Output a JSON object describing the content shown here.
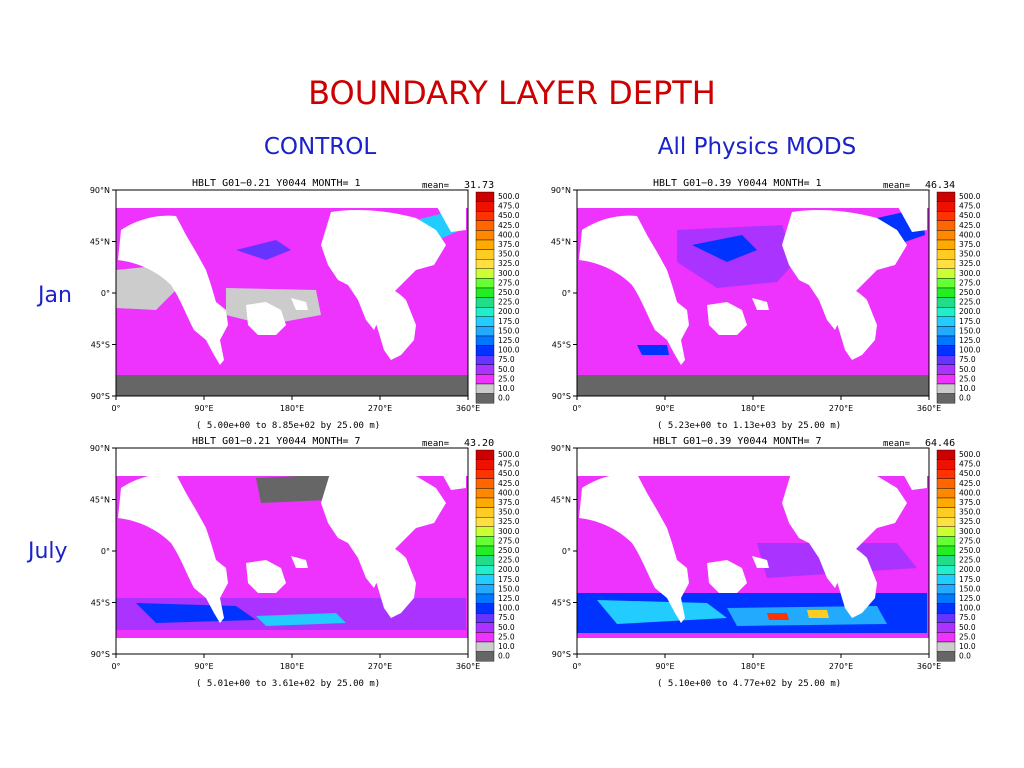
{
  "slide": {
    "title": "BOUNDARY LAYER DEPTH",
    "columns": [
      "CONTROL",
      "All Physics MODS"
    ],
    "rows": [
      "Jan",
      "July"
    ]
  },
  "colorbar": {
    "labels": [
      "500.0",
      "475.0",
      "450.0",
      "425.0",
      "400.0",
      "375.0",
      "350.0",
      "325.0",
      "300.0",
      "275.0",
      "250.0",
      "225.0",
      "200.0",
      "175.0",
      "150.0",
      "125.0",
      "100.0",
      "75.0",
      "50.0",
      "25.0",
      "10.0",
      "0.0"
    ],
    "colors": [
      "#cc0000",
      "#ee1100",
      "#ff3300",
      "#ff6600",
      "#ff8800",
      "#ffaa00",
      "#ffcc22",
      "#ffe040",
      "#ccff33",
      "#66ff33",
      "#22ee22",
      "#22dd88",
      "#22eecc",
      "#22ccff",
      "#22aaff",
      "#0077ff",
      "#0033ff",
      "#6633ff",
      "#aa33ff",
      "#ee33ff",
      "#cccccc",
      "#666666"
    ]
  },
  "axes": {
    "lat_labels": [
      "90°N",
      "45°N",
      "0°",
      "45°S",
      "90°S"
    ],
    "lon_labels": [
      "0°",
      "90°E",
      "180°E",
      "270°E",
      "360°E"
    ]
  },
  "panels": [
    {
      "title": "HBLT G01−0.21 Y0044 MONTH= 1",
      "mean_label": "mean=",
      "mean_value": "31.73",
      "range": "( 5.00e+00 to  8.85e+02 by  25.00 m)"
    },
    {
      "title": "HBLT G01−0.39 Y0044 MONTH= 1",
      "mean_label": "mean=",
      "mean_value": "46.34",
      "range": "( 5.23e+00 to  1.13e+03 by  25.00 m)"
    },
    {
      "title": "HBLT G01−0.21 Y0044 MONTH= 7",
      "mean_label": "mean=",
      "mean_value": "43.20",
      "range": "( 5.01e+00 to  3.61e+02 by  25.00 m)"
    },
    {
      "title": "HBLT G01−0.39 Y0044 MONTH= 7",
      "mean_label": "mean=",
      "mean_value": "64.46",
      "range": "( 5.10e+00 to  4.77e+02 by  25.00 m)"
    }
  ]
}
